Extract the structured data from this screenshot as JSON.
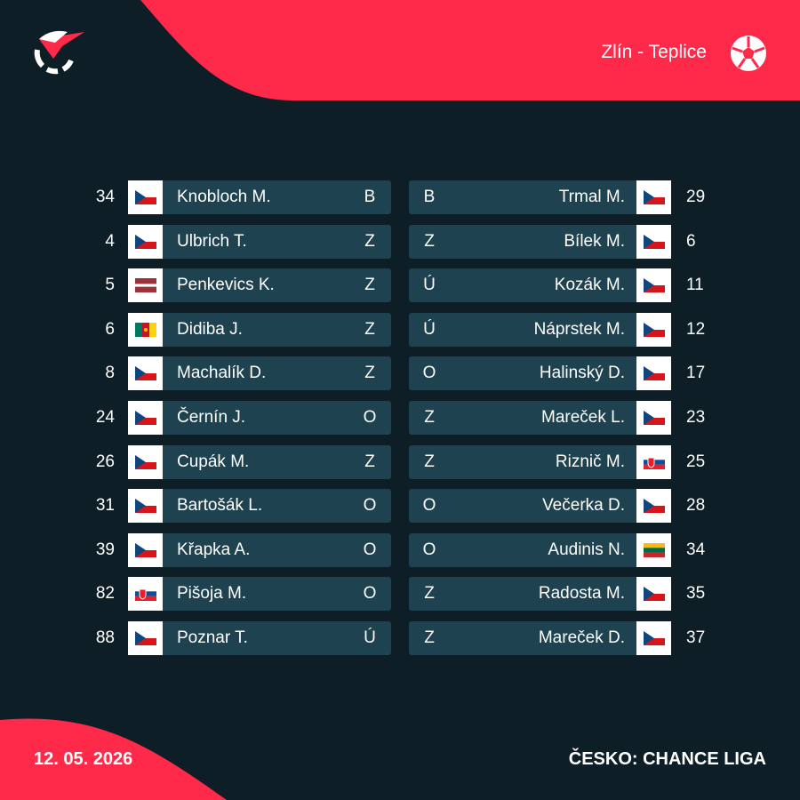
{
  "header": {
    "match": "Zlín - Teplice"
  },
  "home": [
    {
      "number": 34,
      "name": "Knobloch M.",
      "position": "B"
    },
    {
      "number": 4,
      "name": "Ulbrich T.",
      "position": "Z"
    },
    {
      "number": 5,
      "name": "Penkevics K.",
      "position": "Z"
    },
    {
      "number": 6,
      "name": "Didiba J.",
      "position": "Z"
    },
    {
      "number": 8,
      "name": "Machalík D.",
      "position": "Z"
    },
    {
      "number": 24,
      "name": "Černín J.",
      "position": "O"
    },
    {
      "number": 26,
      "name": "Cupák M.",
      "position": "Z"
    },
    {
      "number": 31,
      "name": "Bartošák L.",
      "position": "O"
    },
    {
      "number": 39,
      "name": "Křapka A.",
      "position": "O"
    },
    {
      "number": 82,
      "name": "Pišoja M.",
      "position": "O"
    },
    {
      "number": 88,
      "name": "Poznar T.",
      "position": "Ú"
    }
  ],
  "away": [
    {
      "number": 29,
      "name": "Trmal M.",
      "position": "B"
    },
    {
      "number": 6,
      "name": "Bílek M.",
      "position": "Z"
    },
    {
      "number": 11,
      "name": "Kozák M.",
      "position": "Ú"
    },
    {
      "number": 12,
      "name": "Náprstek M.",
      "position": "Ú"
    },
    {
      "number": 17,
      "name": "Halinský D.",
      "position": "O"
    },
    {
      "number": 23,
      "name": "Mareček L.",
      "position": "Z"
    },
    {
      "number": 25,
      "name": "Riznič M.",
      "position": "Z"
    },
    {
      "number": 28,
      "name": "Večerka D.",
      "position": "O"
    },
    {
      "number": 34,
      "name": "Audinis N.",
      "position": "O"
    },
    {
      "number": 35,
      "name": "Radosta M.",
      "position": "Z"
    },
    {
      "number": 37,
      "name": "Mareček D.",
      "position": "Z"
    }
  ],
  "footer": {
    "date": "12. 05. 2026",
    "league": "ČESKO: CHANCE LIGA"
  }
}
